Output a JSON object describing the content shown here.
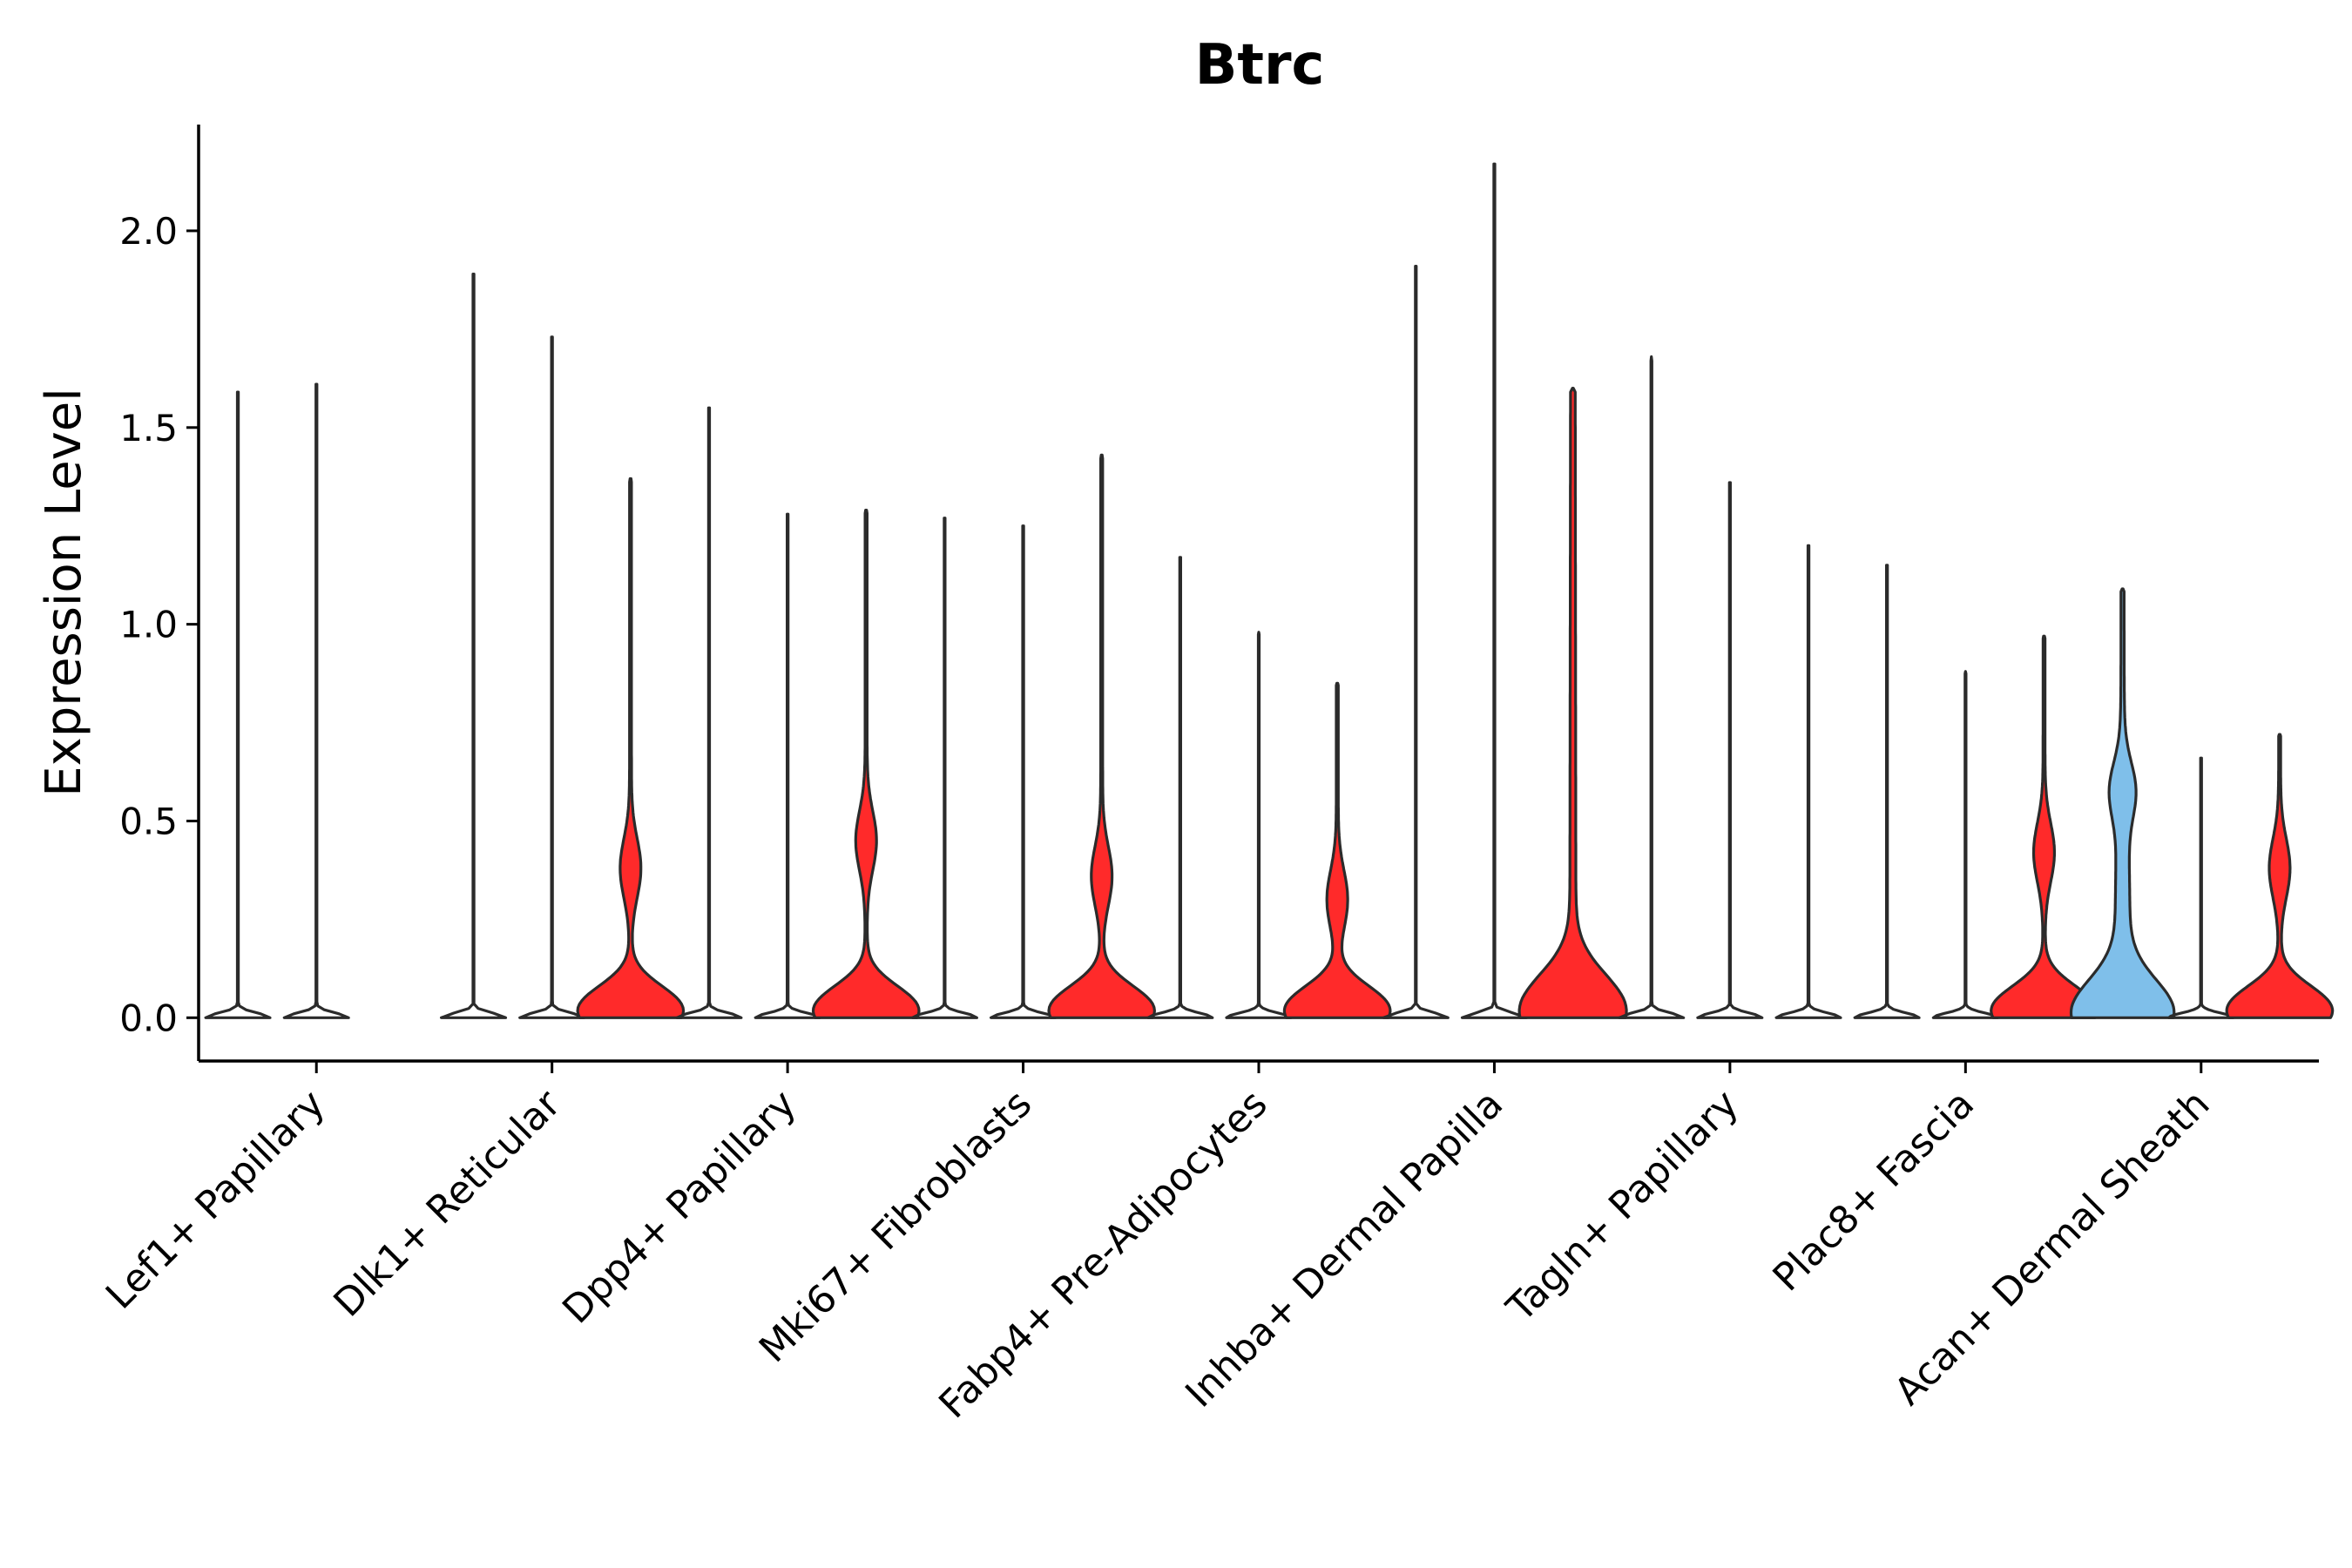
{
  "chart_data": {
    "type": "violin",
    "title": "Btrc",
    "xlabel": "",
    "ylabel": "Expression Level",
    "ylim": [
      -0.11,
      2.27
    ],
    "yticks": [
      "0.0",
      "0.5",
      "1.0",
      "1.5",
      "2.0"
    ],
    "grid": false,
    "legend": "none",
    "colors": {
      "low": "#7fbfea",
      "high": "#ff2a2a",
      "stroke": "#2b2b2b"
    },
    "categories": [
      "Lef1+ Papillary",
      "Dlk1+ Reticular",
      "Dpp4+ Papillary",
      "Mki67+ Fibroblasts",
      "Fabp4+ Pre-Adipocytes",
      "Inhba+ Dermal Papilla",
      "Tagln+ Papillary",
      "Plac8+ Fascia",
      "Acan+ Dermal Sheath"
    ],
    "groups": [
      {
        "category": "Lef1+ Papillary",
        "violins": [
          {
            "max": 1.59,
            "fill": "none",
            "profile": "spike"
          },
          {
            "max": 1.61,
            "fill": "none",
            "profile": "spike"
          },
          {
            "max": null,
            "fill": "none",
            "profile": "none"
          }
        ]
      },
      {
        "category": "Dlk1+ Reticular",
        "violins": [
          {
            "max": 1.89,
            "fill": "none",
            "profile": "spike"
          },
          {
            "max": 1.73,
            "fill": "none",
            "profile": "spike"
          },
          {
            "max": 1.37,
            "fill": "red",
            "profile": "A",
            "peak": 0.38
          }
        ]
      },
      {
        "category": "Dpp4+ Papillary",
        "violins": [
          {
            "max": 1.55,
            "fill": "none",
            "profile": "spike"
          },
          {
            "max": 1.28,
            "fill": "none",
            "profile": "spike"
          },
          {
            "max": 1.29,
            "fill": "red",
            "profile": "A",
            "peak": 0.45
          }
        ]
      },
      {
        "category": "Mki67+ Fibroblasts",
        "violins": [
          {
            "max": 1.27,
            "fill": "none",
            "profile": "spike"
          },
          {
            "max": 1.25,
            "fill": "none",
            "profile": "spike"
          },
          {
            "max": 1.43,
            "fill": "red",
            "profile": "A",
            "peak": 0.36
          }
        ]
      },
      {
        "category": "Fabp4+ Pre-Adipocytes",
        "violins": [
          {
            "max": 1.17,
            "fill": "none",
            "profile": "spike"
          },
          {
            "max": 0.98,
            "fill": "none",
            "profile": "spike"
          },
          {
            "max": 0.85,
            "fill": "red",
            "profile": "A",
            "peak": 0.3
          }
        ]
      },
      {
        "category": "Inhba+ Dermal Papilla",
        "violins": [
          {
            "max": 1.91,
            "fill": "none",
            "profile": "spike"
          },
          {
            "max": 2.17,
            "fill": "none",
            "profile": "spike"
          },
          {
            "max": 1.6,
            "fill": "red",
            "profile": "B"
          }
        ]
      },
      {
        "category": "Tagln+ Papillary",
        "violins": [
          {
            "max": 1.68,
            "fill": "none",
            "profile": "spike"
          },
          {
            "max": 1.36,
            "fill": "none",
            "profile": "spike"
          },
          {
            "max": 1.2,
            "fill": "none",
            "profile": "spike"
          }
        ]
      },
      {
        "category": "Plac8+ Fascia",
        "violins": [
          {
            "max": 1.15,
            "fill": "none",
            "profile": "spike"
          },
          {
            "max": 0.88,
            "fill": "none",
            "profile": "spike"
          },
          {
            "max": 0.97,
            "fill": "red",
            "profile": "A",
            "peak": 0.42
          }
        ]
      },
      {
        "category": "Acan+ Dermal Sheath",
        "violins": [
          {
            "max": 1.09,
            "fill": "blue",
            "profile": "C"
          },
          {
            "max": 0.66,
            "fill": "none",
            "profile": "spike"
          },
          {
            "max": 0.72,
            "fill": "red",
            "profile": "A",
            "peak": 0.38
          }
        ]
      }
    ]
  }
}
